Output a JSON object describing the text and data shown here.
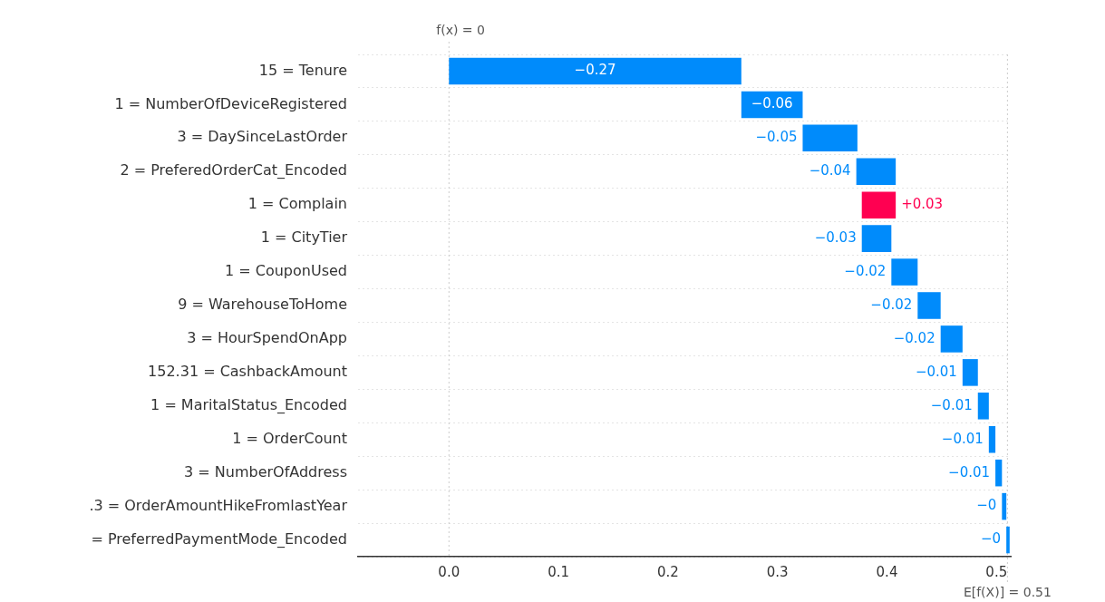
{
  "chart_data": {
    "type": "bar",
    "orientation": "horizontal",
    "categories": [
      "15 = Tenure",
      "1 = NumberOfDeviceRegistered",
      "3 = DaySinceLastOrder",
      "2 = PreferedOrderCat_Encoded",
      "1 = Complain",
      "1 = CityTier",
      "1 = CouponUsed",
      "9 = WarehouseToHome",
      "3 = HourSpendOnApp",
      "152.31 = CashbackAmount",
      "1 = MaritalStatus_Encoded",
      "1 = OrderCount",
      "3 = NumberOfAddress",
      ".3 = OrderAmountHikeFromlastYear",
      "= PreferredPaymentMode_Encoded"
    ],
    "values": [
      -0.267,
      -0.056,
      -0.05,
      -0.036,
      0.031,
      -0.027,
      -0.024,
      -0.021,
      -0.02,
      -0.014,
      -0.01,
      -0.006,
      -0.006,
      -0.004,
      -0.003
    ],
    "base": [
      0.267,
      0.323,
      0.373,
      0.408,
      0.377,
      0.404,
      0.428,
      0.449,
      0.469,
      0.483,
      0.493,
      0.499,
      0.505,
      0.509,
      0.512
    ],
    "colors": [
      "#008bfb",
      "#008bfb",
      "#008bfb",
      "#008bfb",
      "#ff0051",
      "#008bfb",
      "#008bfb",
      "#008bfb",
      "#008bfb",
      "#008bfb",
      "#008bfb",
      "#008bfb",
      "#008bfb",
      "#008bfb",
      "#008bfb"
    ],
    "value_labels": [
      "−0.27",
      "−0.06",
      "−0.05",
      "−0.04",
      "+0.03",
      "−0.03",
      "−0.02",
      "−0.02",
      "−0.02",
      "−0.01",
      "−0.01",
      "−0.01",
      "−0.01",
      "−0",
      "−0"
    ],
    "xlim": [
      -0.083,
      0.513
    ],
    "xticks": [
      {
        "value": 0,
        "label": "0.0"
      },
      {
        "value": 0.1,
        "label": "0.1"
      },
      {
        "value": 0.2,
        "label": "0.2"
      },
      {
        "value": 0.3,
        "label": "0.3"
      },
      {
        "value": 0.4,
        "label": "0.4"
      },
      {
        "value": 0.5,
        "label": "0.5"
      }
    ],
    "grid": "y",
    "ref_lines": [
      {
        "axis": "x",
        "value": 0,
        "label": "f(x) = 0",
        "color": "#cccccc",
        "line_style": "dotted"
      },
      {
        "axis": "x",
        "value": 0.51,
        "label": "E[f(X)] = 0.51",
        "color": "#cccccc",
        "line_style": "dotted"
      }
    ]
  }
}
